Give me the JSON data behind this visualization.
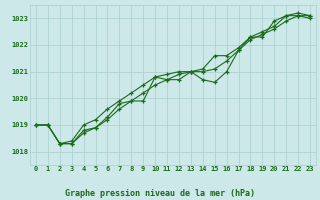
{
  "title": "Graphe pression niveau de la mer (hPa)",
  "bg_color": "#cce8e8",
  "grid_color": "#aacece",
  "line_color": "#1a6b1a",
  "xlim": [
    -0.5,
    23.5
  ],
  "ylim": [
    1017.5,
    1023.5
  ],
  "yticks": [
    1018,
    1019,
    1020,
    1021,
    1022,
    1023
  ],
  "xticks": [
    0,
    1,
    2,
    3,
    4,
    5,
    6,
    7,
    8,
    9,
    10,
    11,
    12,
    13,
    14,
    15,
    16,
    17,
    18,
    19,
    20,
    21,
    22,
    23
  ],
  "series1": [
    1019.0,
    1019.0,
    1018.3,
    1018.3,
    1018.8,
    1018.9,
    1019.3,
    1019.8,
    1019.9,
    1019.9,
    1020.8,
    1020.9,
    1021.0,
    1021.0,
    1020.7,
    1020.6,
    1021.0,
    1021.8,
    1022.3,
    1022.3,
    1022.9,
    1023.1,
    1023.2,
    1023.1
  ],
  "series2": [
    1019.0,
    1019.0,
    1018.3,
    1018.4,
    1019.0,
    1019.2,
    1019.6,
    1019.9,
    1020.2,
    1020.5,
    1020.8,
    1020.7,
    1020.7,
    1021.0,
    1021.1,
    1021.6,
    1021.6,
    1021.9,
    1022.3,
    1022.5,
    1022.7,
    1023.1,
    1023.1,
    1023.0
  ],
  "series3": [
    1019.0,
    1019.0,
    1018.3,
    1018.3,
    1018.7,
    1018.9,
    1019.2,
    1019.6,
    1019.9,
    1020.2,
    1020.5,
    1020.7,
    1020.9,
    1021.0,
    1021.0,
    1021.1,
    1021.4,
    1021.8,
    1022.2,
    1022.4,
    1022.6,
    1022.9,
    1023.1,
    1023.1
  ]
}
